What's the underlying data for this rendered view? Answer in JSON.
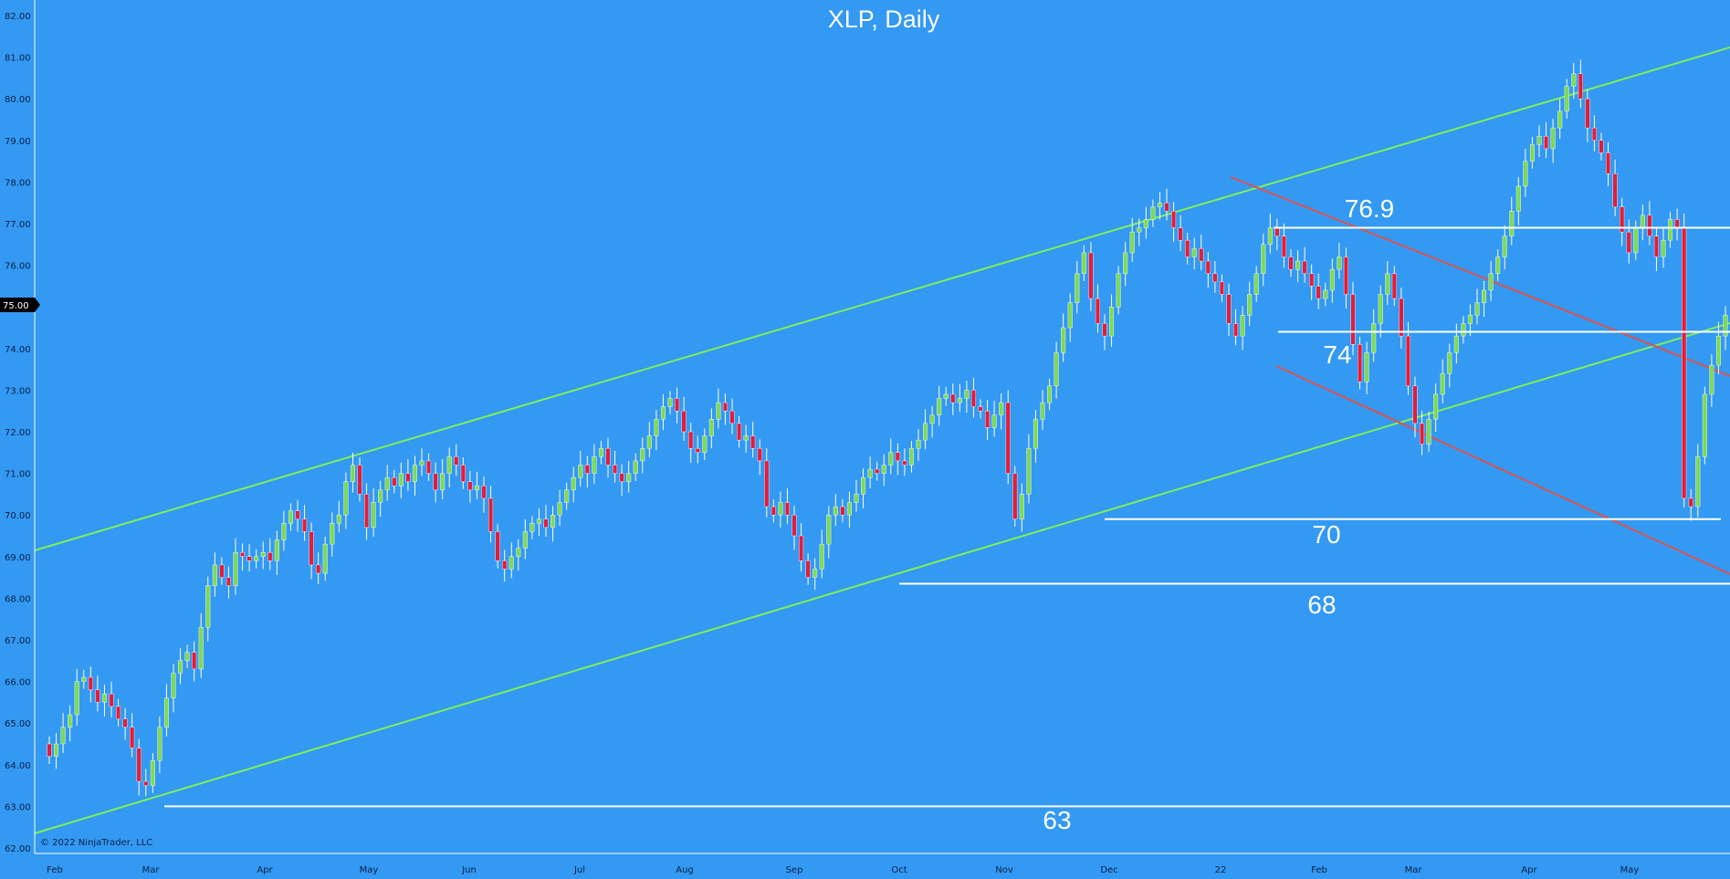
{
  "chart_data": {
    "type": "candlestick",
    "title": "XLP, Daily",
    "ylim": [
      62.0,
      82.0
    ],
    "y_ticks": [
      "62.00",
      "63.00",
      "64.00",
      "65.00",
      "66.00",
      "67.00",
      "68.00",
      "69.00",
      "70.00",
      "71.00",
      "72.00",
      "73.00",
      "74.00",
      "75.00",
      "76.00",
      "77.00",
      "78.00",
      "79.00",
      "80.00",
      "81.00",
      "82.00"
    ],
    "x_ticks": [
      "Feb",
      "Mar",
      "Apr",
      "May",
      "Jun",
      "Jul",
      "Aug",
      "Sep",
      "Oct",
      "Nov",
      "Dec",
      "22",
      "Feb",
      "Mar",
      "Apr",
      "May"
    ],
    "price_marker": "75.00",
    "copyright": "© 2022 NinjaTrader, LLC",
    "level_labels": [
      "76.9",
      "74",
      "70",
      "68",
      "63"
    ],
    "colors": {
      "background": "#3399f3",
      "up": "#7fd957",
      "down": "#e01e3c",
      "channel": "#7ef05a",
      "downtrend": "#d9534f",
      "level": "#ffffff"
    },
    "closes": [
      64.2,
      64.5,
      64.9,
      65.2,
      66.0,
      66.1,
      65.8,
      65.5,
      65.7,
      65.4,
      65.1,
      64.9,
      64.4,
      63.6,
      63.5,
      64.1,
      64.9,
      65.6,
      66.2,
      66.5,
      66.7,
      66.3,
      67.3,
      68.3,
      68.8,
      68.5,
      68.3,
      69.1,
      69.0,
      68.9,
      69.0,
      69.1,
      68.9,
      69.4,
      69.8,
      70.1,
      69.9,
      69.6,
      68.8,
      68.6,
      69.3,
      69.8,
      70.0,
      70.8,
      71.2,
      70.5,
      69.7,
      70.3,
      70.6,
      70.9,
      70.7,
      71.0,
      70.8,
      71.2,
      71.3,
      71.0,
      70.6,
      71.0,
      71.4,
      71.2,
      70.8,
      70.6,
      70.7,
      70.4,
      69.6,
      68.9,
      68.7,
      69.0,
      69.2,
      69.6,
      69.8,
      69.9,
      69.7,
      70.0,
      70.3,
      70.6,
      70.9,
      71.2,
      71.0,
      71.4,
      71.6,
      71.2,
      71.0,
      70.8,
      71.0,
      71.3,
      71.6,
      71.9,
      72.3,
      72.6,
      72.8,
      72.5,
      72.0,
      71.6,
      71.5,
      71.9,
      72.3,
      72.7,
      72.5,
      72.2,
      71.8,
      71.9,
      71.6,
      71.3,
      70.2,
      70.0,
      70.3,
      70.0,
      69.5,
      68.9,
      68.5,
      68.7,
      69.3,
      70.0,
      70.2,
      70.0,
      70.3,
      70.5,
      70.9,
      71.1,
      71.0,
      71.2,
      71.5,
      71.3,
      71.2,
      71.6,
      71.8,
      72.2,
      72.4,
      72.8,
      72.9,
      72.7,
      72.8,
      73.0,
      72.6,
      72.5,
      72.1,
      72.4,
      72.7,
      71.0,
      69.9,
      70.5,
      71.6,
      72.3,
      72.7,
      73.1,
      73.9,
      74.5,
      75.1,
      75.8,
      76.3,
      75.2,
      74.6,
      74.3,
      75.0,
      75.8,
      76.3,
      76.8,
      76.9,
      77.1,
      77.4,
      77.5,
      77.3,
      76.9,
      76.6,
      76.2,
      76.4,
      76.1,
      75.8,
      75.6,
      75.3,
      74.6,
      74.3,
      74.8,
      75.3,
      75.8,
      76.5,
      76.9,
      76.7,
      76.2,
      75.9,
      76.1,
      75.8,
      75.5,
      75.2,
      75.4,
      75.9,
      76.2,
      75.3,
      74.1,
      73.2,
      73.9,
      74.6,
      75.3,
      75.8,
      75.2,
      74.3,
      73.1,
      72.2,
      71.7,
      72.3,
      72.9,
      73.4,
      73.9,
      74.3,
      74.6,
      74.8,
      75.1,
      75.4,
      75.8,
      76.2,
      76.7,
      77.3,
      77.9,
      78.5,
      78.9,
      79.1,
      78.8,
      79.3,
      79.7,
      80.3,
      80.6,
      80.0,
      79.3,
      79.0,
      78.7,
      78.2,
      77.4,
      76.8,
      76.3,
      76.9,
      77.2,
      76.7,
      76.2,
      76.6,
      77.1,
      76.9,
      70.4,
      70.2,
      71.4,
      72.9,
      73.6,
      74.3,
      74.8
    ]
  }
}
